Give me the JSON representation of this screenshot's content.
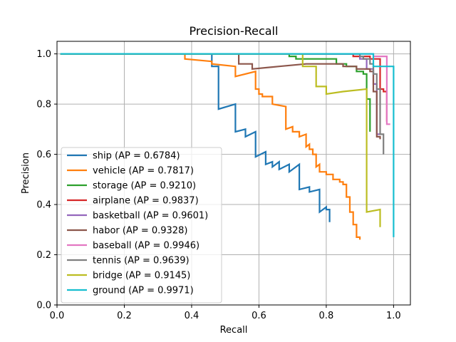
{
  "chart_data": {
    "type": "line",
    "title": "Precision-Recall",
    "xlabel": "Recall",
    "ylabel": "Precision",
    "xlim": [
      0.0,
      1.05
    ],
    "ylim": [
      0.0,
      1.05
    ],
    "xticks": [
      "0.0",
      "0.2",
      "0.4",
      "0.6",
      "0.8",
      "1.0"
    ],
    "yticks": [
      "0.0",
      "0.2",
      "0.4",
      "0.6",
      "0.8",
      "1.0"
    ],
    "grid": true,
    "legend_position": "lower-left",
    "series": [
      {
        "name": "ship (AP = 0.6784)",
        "color": "#1f77b4",
        "points": [
          [
            0.01,
            1.0
          ],
          [
            0.46,
            1.0
          ],
          [
            0.46,
            0.95
          ],
          [
            0.48,
            0.95
          ],
          [
            0.48,
            0.78
          ],
          [
            0.53,
            0.8
          ],
          [
            0.53,
            0.69
          ],
          [
            0.56,
            0.7
          ],
          [
            0.56,
            0.67
          ],
          [
            0.59,
            0.69
          ],
          [
            0.59,
            0.59
          ],
          [
            0.62,
            0.61
          ],
          [
            0.62,
            0.56
          ],
          [
            0.64,
            0.57
          ],
          [
            0.64,
            0.55
          ],
          [
            0.66,
            0.57
          ],
          [
            0.66,
            0.54
          ],
          [
            0.69,
            0.56
          ],
          [
            0.69,
            0.53
          ],
          [
            0.72,
            0.56
          ],
          [
            0.72,
            0.46
          ],
          [
            0.75,
            0.47
          ],
          [
            0.75,
            0.45
          ],
          [
            0.78,
            0.46
          ],
          [
            0.78,
            0.37
          ],
          [
            0.8,
            0.39
          ],
          [
            0.8,
            0.38
          ],
          [
            0.81,
            0.38
          ],
          [
            0.81,
            0.33
          ]
        ]
      },
      {
        "name": "vehicle (AP = 0.7817)",
        "color": "#ff7f0e",
        "points": [
          [
            0.01,
            1.0
          ],
          [
            0.38,
            1.0
          ],
          [
            0.38,
            0.98
          ],
          [
            0.46,
            0.97
          ],
          [
            0.46,
            0.96
          ],
          [
            0.53,
            0.95
          ],
          [
            0.53,
            0.91
          ],
          [
            0.59,
            0.93
          ],
          [
            0.59,
            0.86
          ],
          [
            0.6,
            0.86
          ],
          [
            0.6,
            0.84
          ],
          [
            0.61,
            0.84
          ],
          [
            0.61,
            0.83
          ],
          [
            0.64,
            0.83
          ],
          [
            0.64,
            0.8
          ],
          [
            0.68,
            0.79
          ],
          [
            0.68,
            0.7
          ],
          [
            0.7,
            0.71
          ],
          [
            0.7,
            0.69
          ],
          [
            0.72,
            0.69
          ],
          [
            0.72,
            0.67
          ],
          [
            0.74,
            0.68
          ],
          [
            0.74,
            0.63
          ],
          [
            0.75,
            0.64
          ],
          [
            0.75,
            0.62
          ],
          [
            0.76,
            0.62
          ],
          [
            0.76,
            0.6
          ],
          [
            0.77,
            0.6
          ],
          [
            0.77,
            0.55
          ],
          [
            0.78,
            0.56
          ],
          [
            0.78,
            0.53
          ],
          [
            0.8,
            0.53
          ],
          [
            0.8,
            0.52
          ],
          [
            0.82,
            0.52
          ],
          [
            0.82,
            0.5
          ],
          [
            0.84,
            0.5
          ],
          [
            0.84,
            0.49
          ],
          [
            0.85,
            0.49
          ],
          [
            0.85,
            0.48
          ],
          [
            0.86,
            0.48
          ],
          [
            0.86,
            0.43
          ],
          [
            0.87,
            0.43
          ],
          [
            0.87,
            0.37
          ],
          [
            0.88,
            0.37
          ],
          [
            0.88,
            0.32
          ],
          [
            0.89,
            0.32
          ],
          [
            0.89,
            0.27
          ],
          [
            0.9,
            0.27
          ],
          [
            0.9,
            0.26
          ]
        ]
      },
      {
        "name": "storage (AP = 0.9210)",
        "color": "#2ca02c",
        "points": [
          [
            0.01,
            1.0
          ],
          [
            0.69,
            1.0
          ],
          [
            0.69,
            0.99
          ],
          [
            0.71,
            0.99
          ],
          [
            0.71,
            0.98
          ],
          [
            0.83,
            0.98
          ],
          [
            0.83,
            0.96
          ],
          [
            0.86,
            0.96
          ],
          [
            0.86,
            0.95
          ],
          [
            0.89,
            0.95
          ],
          [
            0.89,
            0.93
          ],
          [
            0.91,
            0.93
          ],
          [
            0.91,
            0.92
          ],
          [
            0.92,
            0.92
          ],
          [
            0.92,
            0.82
          ],
          [
            0.93,
            0.82
          ],
          [
            0.93,
            0.69
          ]
        ]
      },
      {
        "name": "airplane (AP = 0.9837)",
        "color": "#d62728",
        "points": [
          [
            0.01,
            1.0
          ],
          [
            0.88,
            1.0
          ],
          [
            0.88,
            0.99
          ],
          [
            0.93,
            0.99
          ],
          [
            0.93,
            0.98
          ],
          [
            0.96,
            0.98
          ],
          [
            0.96,
            0.86
          ],
          [
            0.97,
            0.86
          ],
          [
            0.97,
            0.85
          ],
          [
            0.98,
            0.85
          ],
          [
            0.98,
            0.73
          ]
        ]
      },
      {
        "name": "basketball (AP = 0.9601)",
        "color": "#9467bd",
        "points": [
          [
            0.01,
            1.0
          ],
          [
            0.9,
            1.0
          ],
          [
            0.9,
            0.98
          ],
          [
            0.92,
            0.98
          ],
          [
            0.92,
            0.94
          ],
          [
            0.94,
            0.94
          ],
          [
            0.94,
            0.88
          ],
          [
            0.95,
            0.88
          ],
          [
            0.95,
            0.68
          ],
          [
            0.96,
            0.68
          ]
        ]
      },
      {
        "name": "habor (AP = 0.9328)",
        "color": "#8c564b",
        "points": [
          [
            0.01,
            1.0
          ],
          [
            0.54,
            1.0
          ],
          [
            0.54,
            0.96
          ],
          [
            0.58,
            0.96
          ],
          [
            0.58,
            0.94
          ],
          [
            0.66,
            0.95
          ],
          [
            0.74,
            0.96
          ],
          [
            0.85,
            0.96
          ],
          [
            0.85,
            0.95
          ],
          [
            0.89,
            0.95
          ],
          [
            0.89,
            0.94
          ],
          [
            0.93,
            0.94
          ],
          [
            0.93,
            0.93
          ],
          [
            0.94,
            0.93
          ],
          [
            0.94,
            0.85
          ],
          [
            0.95,
            0.85
          ],
          [
            0.95,
            0.67
          ],
          [
            0.96,
            0.67
          ],
          [
            0.96,
            0.66
          ]
        ]
      },
      {
        "name": "baseball (AP = 0.9946)",
        "color": "#e377c2",
        "points": [
          [
            0.01,
            1.0
          ],
          [
            0.94,
            1.0
          ],
          [
            0.94,
            0.99
          ],
          [
            0.98,
            0.99
          ],
          [
            0.98,
            0.72
          ],
          [
            0.99,
            0.72
          ]
        ]
      },
      {
        "name": "tennis (AP = 0.9639)",
        "color": "#7f7f7f",
        "points": [
          [
            0.01,
            1.0
          ],
          [
            0.9,
            1.0
          ],
          [
            0.9,
            0.99
          ],
          [
            0.91,
            0.99
          ],
          [
            0.91,
            0.98
          ],
          [
            0.93,
            0.98
          ],
          [
            0.93,
            0.96
          ],
          [
            0.94,
            0.96
          ],
          [
            0.94,
            0.92
          ],
          [
            0.95,
            0.92
          ],
          [
            0.95,
            0.86
          ],
          [
            0.96,
            0.86
          ],
          [
            0.96,
            0.68
          ],
          [
            0.97,
            0.68
          ],
          [
            0.97,
            0.6
          ]
        ]
      },
      {
        "name": "bridge (AP = 0.9145)",
        "color": "#bcbd22",
        "points": [
          [
            0.01,
            1.0
          ],
          [
            0.73,
            1.0
          ],
          [
            0.73,
            0.95
          ],
          [
            0.77,
            0.95
          ],
          [
            0.77,
            0.87
          ],
          [
            0.8,
            0.87
          ],
          [
            0.8,
            0.84
          ],
          [
            0.85,
            0.85
          ],
          [
            0.92,
            0.86
          ],
          [
            0.92,
            0.37
          ],
          [
            0.96,
            0.38
          ],
          [
            0.96,
            0.31
          ]
        ]
      },
      {
        "name": "ground (AP = 0.9971)",
        "color": "#17becf",
        "points": [
          [
            0.01,
            1.0
          ],
          [
            0.94,
            1.0
          ],
          [
            0.94,
            0.95
          ],
          [
            1.0,
            0.95
          ],
          [
            1.0,
            0.27
          ]
        ]
      }
    ]
  }
}
